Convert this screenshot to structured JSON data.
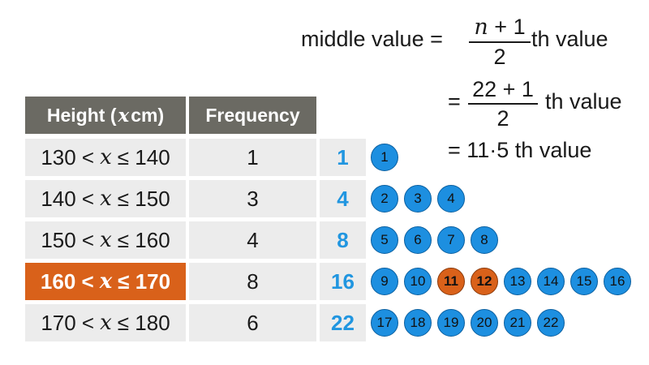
{
  "formula": {
    "line1_prefix": "middle value =",
    "line1_num_var": "n",
    "line1_num_rest": " + 1",
    "line1_den": "2",
    "line1_suffix": "th value",
    "line2_prefix": "=",
    "line2_num": "22 + 1",
    "line2_den": "2",
    "line2_suffix": "th value",
    "line3": "= 11·5 th value"
  },
  "table": {
    "header_height_label": "Height (",
    "header_height_var": "x",
    "header_height_unit": " cm)",
    "header_frequency": "Frequency",
    "rows": [
      {
        "low": "130 <",
        "var": "x",
        "high": "≤ 140",
        "frequency": "1",
        "cumulative": "1",
        "highlight": false
      },
      {
        "low": "140 <",
        "var": "x",
        "high": "≤ 150",
        "frequency": "3",
        "cumulative": "4",
        "highlight": false
      },
      {
        "low": "150 <",
        "var": "x",
        "high": "≤ 160",
        "frequency": "4",
        "cumulative": "8",
        "highlight": false
      },
      {
        "low": "160 <",
        "var": "x",
        "high": "≤ 170",
        "frequency": "8",
        "cumulative": "16",
        "highlight": true
      },
      {
        "low": "170 <",
        "var": "x",
        "high": "≤ 180",
        "frequency": "6",
        "cumulative": "22",
        "highlight": false
      }
    ]
  },
  "dot_rows": [
    [
      "1"
    ],
    [
      "2",
      "3",
      "4"
    ],
    [
      "5",
      "6",
      "7",
      "8"
    ],
    [
      "9",
      "10",
      "11",
      "12",
      "13",
      "14",
      "15",
      "16"
    ],
    [
      "17",
      "18",
      "19",
      "20",
      "21",
      "22"
    ]
  ],
  "highlighted_values": [
    "11",
    "12"
  ],
  "colors": {
    "blue": "#1d8fe0",
    "orange": "#d9611a",
    "header": "#6b6a63",
    "cell": "#ececec",
    "cumulative_text": "#2196e0"
  }
}
